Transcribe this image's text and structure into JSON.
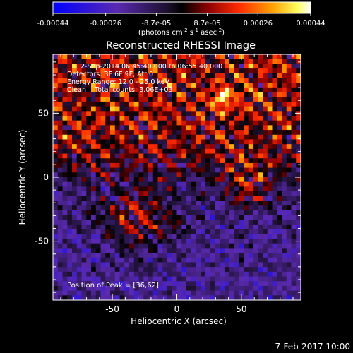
{
  "colorbar": {
    "tick_labels": [
      "-0.00044",
      "-0.00026",
      "-8.7e-05",
      "8.7e-05",
      "0.00026",
      "0.00044"
    ],
    "range": [
      -0.00044,
      0.00044
    ],
    "units": {
      "prefix": "(photons cm",
      "sup1": "-2",
      "mid1": " s",
      "sup2": "-1",
      "mid2": " asec",
      "sup3": "-2",
      "suffix": ")"
    }
  },
  "chart_data": {
    "type": "heatmap",
    "title": "Reconstructed RHESSI Image",
    "xlabel": "Heliocentric X (arcsec)",
    "ylabel": "Heliocentric Y (arcsec)",
    "xlim": [
      -96,
      96
    ],
    "ylim": [
      -96,
      96
    ],
    "x_ticks": [
      -50,
      0,
      50
    ],
    "y_ticks": [
      -50,
      0,
      50
    ],
    "colorscale": "blue-purple-black-red-orange-yellow-white",
    "annotations": [
      "2-Sep-2014 06:45:40.000 to 06:55:40.000",
      "Detectors: 3F 6F 9F, Att 0",
      "Energy Range: 12.0 - 25.0 keV",
      "Clean    Total counts: 3.06E+03"
    ],
    "peak_label": "Position of Peak = [36,62]",
    "peak_position": [
      36,
      62
    ],
    "value_range": [
      -0.00044,
      0.00044
    ]
  },
  "footer": {
    "date_stamp": "7-Feb-2017 10:00"
  }
}
